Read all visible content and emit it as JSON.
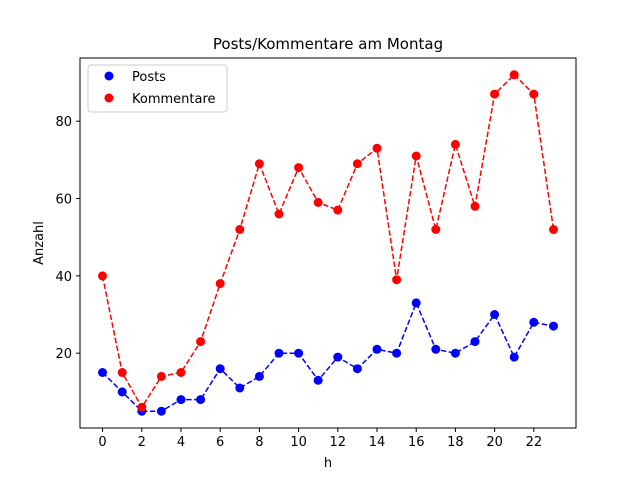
{
  "chart_data": {
    "type": "line",
    "title": "Posts/Kommentare am Montag",
    "xlabel": "h",
    "ylabel": "Anzahl",
    "x": [
      0,
      1,
      2,
      3,
      4,
      5,
      6,
      7,
      8,
      9,
      10,
      11,
      12,
      13,
      14,
      15,
      16,
      17,
      18,
      19,
      20,
      21,
      22,
      23
    ],
    "xlim": [
      -1.15,
      24.15
    ],
    "ylim": [
      0.65,
      96.35
    ],
    "xticks": [
      0,
      2,
      4,
      6,
      8,
      10,
      12,
      14,
      16,
      18,
      20,
      22
    ],
    "yticks": [
      20,
      40,
      60,
      80
    ],
    "grid": false,
    "legend_position": "top-left",
    "series": [
      {
        "name": "Posts",
        "color": "#0000ff",
        "line_style": "dashed",
        "marker": "circle",
        "values": [
          15,
          10,
          5,
          5,
          8,
          8,
          16,
          11,
          14,
          20,
          20,
          13,
          19,
          16,
          21,
          20,
          33,
          21,
          20,
          23,
          30,
          19,
          28,
          27
        ]
      },
      {
        "name": "Kommentare",
        "color": "#ff0000",
        "line_style": "dashed",
        "marker": "circle",
        "values": [
          40,
          15,
          6,
          14,
          15,
          23,
          38,
          52,
          69,
          56,
          68,
          59,
          57,
          69,
          73,
          39,
          71,
          52,
          74,
          58,
          87,
          92,
          87,
          52
        ]
      }
    ]
  }
}
